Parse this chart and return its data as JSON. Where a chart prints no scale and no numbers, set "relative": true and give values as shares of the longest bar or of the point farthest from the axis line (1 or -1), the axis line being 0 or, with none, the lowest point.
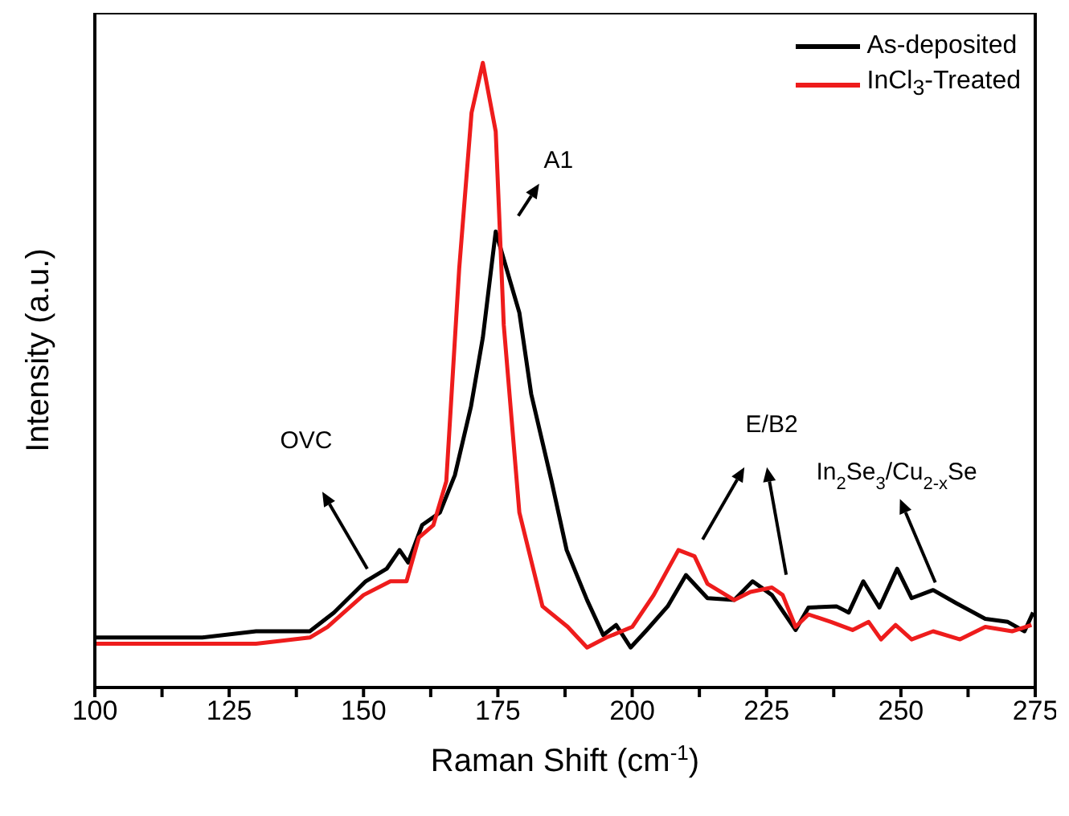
{
  "chart_data": {
    "type": "line",
    "relative": true,
    "xlabel": "Raman Shift (cm$^{-1}$)",
    "ylabel": "Intensity (a.u.)",
    "xlim": [
      100,
      275
    ],
    "xticks": [
      100,
      {
        "value": 112.5,
        "label": null
      },
      125,
      {
        "value": 137.5,
        "label": null
      },
      150,
      {
        "value": 162.5,
        "label": null
      },
      175,
      {
        "value": 187.5,
        "label": null
      },
      200,
      {
        "value": 212.5,
        "label": null
      },
      225,
      {
        "value": 237.5,
        "label": null
      },
      250,
      {
        "value": 262.5,
        "label": null
      },
      275
    ],
    "legend": "top right",
    "marker": "none",
    "line_style": "solid",
    "series": [
      {
        "name": "As-deposited",
        "color": "#000000",
        "x": [
          100,
          110,
          120,
          130,
          140,
          144.5,
          150.4,
          154.3,
          156.7,
          158.3,
          160.9,
          164.2,
          167,
          170,
          172.2,
          174.6,
          177.3,
          179,
          181.2,
          185,
          187.8,
          191.6,
          194.6,
          197,
          199.7,
          202.7,
          206.6,
          210,
          214,
          219,
          222.4,
          226,
          230.4,
          232.8,
          238,
          240.3,
          243,
          246,
          249.3,
          252,
          256,
          260.3,
          265.7,
          269.9,
          273,
          274.6
        ],
        "values": [
          0.08,
          0.08,
          0.08,
          0.09,
          0.09,
          0.12,
          0.17,
          0.19,
          0.22,
          0.2,
          0.26,
          0.28,
          0.34,
          0.45,
          0.56,
          0.73,
          0.65,
          0.6,
          0.47,
          0.33,
          0.22,
          0.14,
          0.084,
          0.1,
          0.064,
          0.092,
          0.13,
          0.18,
          0.143,
          0.14,
          0.17,
          0.148,
          0.092,
          0.128,
          0.13,
          0.12,
          0.17,
          0.128,
          0.19,
          0.143,
          0.156,
          0.135,
          0.11,
          0.105,
          0.09,
          0.12
        ]
      },
      {
        "name": "InCl$_{3}$-Treated",
        "color": "#ee1c1c",
        "x": [
          100,
          110,
          120,
          130,
          140,
          143.3,
          150,
          155,
          158,
          160.3,
          163,
          165.4,
          167.8,
          170.1,
          172.2,
          174.6,
          176.1,
          179,
          183.3,
          188,
          191.6,
          195.2,
          200,
          204,
          208.6,
          211.6,
          214,
          219,
          222,
          226,
          228,
          230.4,
          232.8,
          237,
          241,
          244,
          246.3,
          249,
          252,
          256,
          261,
          265.7,
          270.7,
          274.3
        ],
        "values": [
          0.07,
          0.07,
          0.07,
          0.07,
          0.08,
          0.097,
          0.148,
          0.17,
          0.17,
          0.24,
          0.26,
          0.33,
          0.67,
          0.92,
          1,
          0.89,
          0.58,
          0.28,
          0.13,
          0.097,
          0.064,
          0.08,
          0.097,
          0.148,
          0.22,
          0.21,
          0.166,
          0.14,
          0.153,
          0.16,
          0.148,
          0.097,
          0.117,
          0.105,
          0.092,
          0.105,
          0.077,
          0.1,
          0.077,
          0.09,
          0.077,
          0.097,
          0.09,
          0.1
        ]
      }
    ],
    "annotations": [
      "OVC",
      "A1",
      "E/B2",
      "In$_{2}$Se$_{3}$/Cu$_{2-x}$Se"
    ]
  }
}
